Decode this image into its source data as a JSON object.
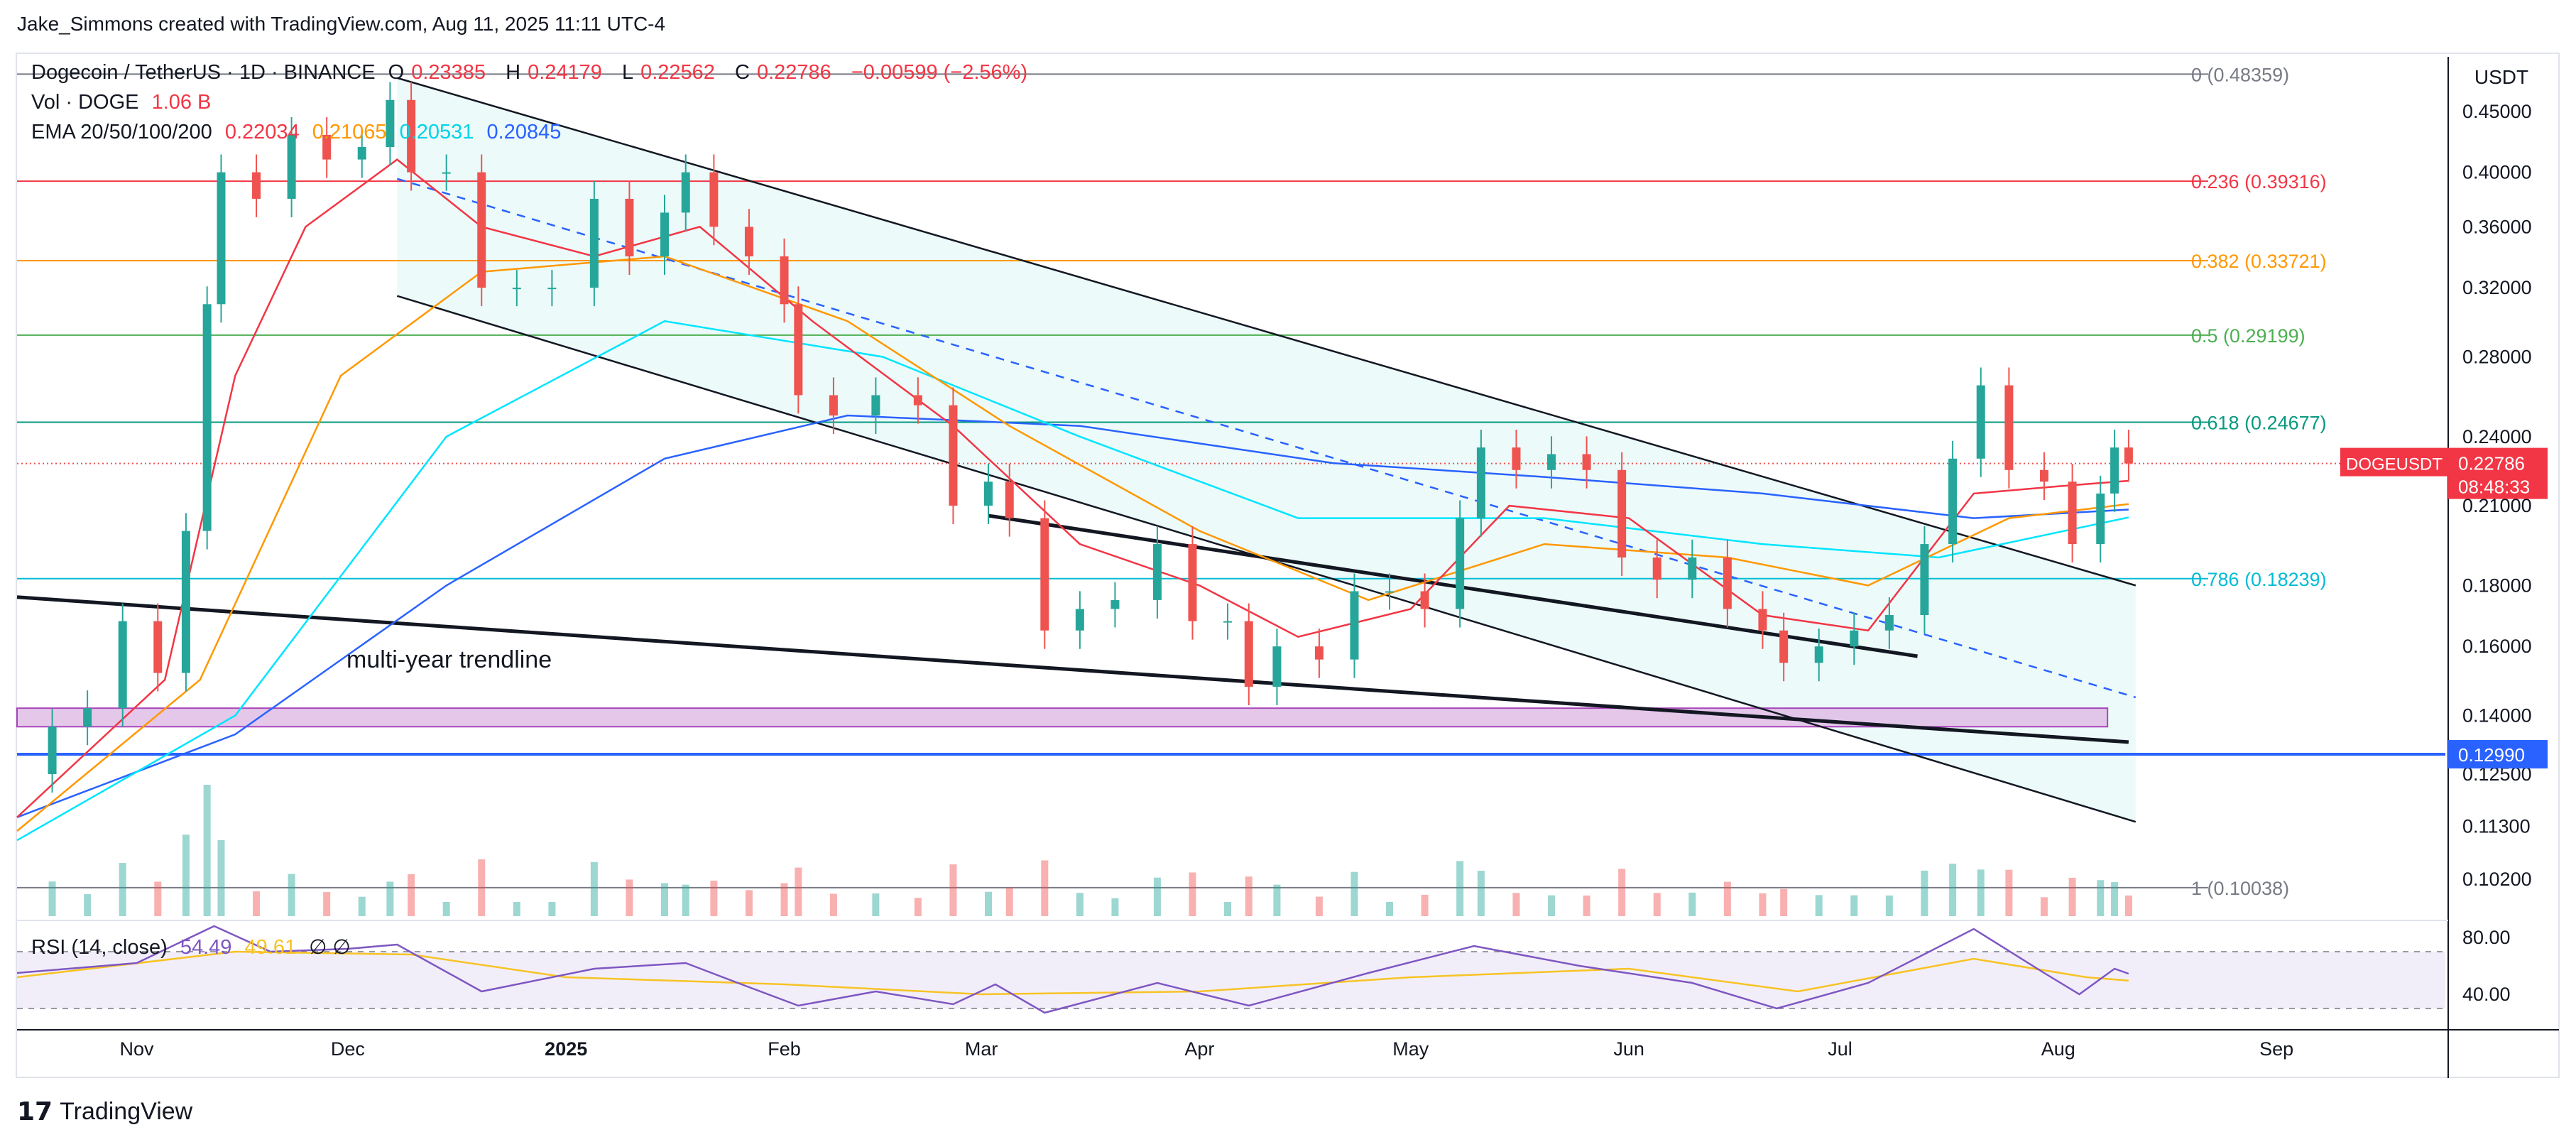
{
  "caption": "Jake_Simmons created with TradingView.com, Aug 11, 2025 11:11 UTC-4",
  "legend": {
    "symbol": "Dogecoin / TetherUS · 1D · BINANCE",
    "o_label": "O",
    "o_value": "0.23385",
    "h_label": "H",
    "h_value": "0.24179",
    "l_label": "L",
    "l_value": "0.22562",
    "c_label": "C",
    "c_value": "0.22786",
    "change": "−0.00599 (−2.56%)",
    "vol_label": "Vol · DOGE",
    "vol_value": "1.06 B",
    "ema_label": "EMA 20/50/100/200",
    "ema20": "0.22034",
    "ema50": "0.21065",
    "ema100": "0.20531",
    "ema200": "0.20845",
    "rsi_label": "RSI (14, close)",
    "rsi_value": "54.49",
    "rsi_ma": "49.61",
    "rsi_icons": "∅ ∅"
  },
  "currency": "USDT",
  "brand": "TradingView",
  "annotation": "multi-year trendline",
  "colors": {
    "up": "#26a69a",
    "down": "#ef5350",
    "ema20": "#f23645",
    "ema50": "#ff9800",
    "ema100": "#00e5ff",
    "ema200": "#2962ff",
    "support": "#2962ff",
    "zone": "#9c27b0",
    "channel": "#e0f7f7"
  },
  "chart_data": {
    "type": "candlestick",
    "title": "Dogecoin / TetherUS · 1D · BINANCE",
    "y_scale": "log",
    "ylim": [
      0.095,
      0.5
    ],
    "y_ticks": [
      "0.45000",
      "0.40000",
      "0.36000",
      "0.32000",
      "0.28000",
      "0.24000",
      "0.21000",
      "0.18000",
      "0.16000",
      "0.14000",
      "0.12500",
      "0.11300",
      "0.10200"
    ],
    "y_tick_values": [
      0.45,
      0.4,
      0.36,
      0.32,
      0.28,
      0.24,
      0.21,
      0.18,
      0.16,
      0.14,
      0.125,
      0.113,
      0.102
    ],
    "x_ticks": [
      "Nov",
      "Dec",
      "2025",
      "Feb",
      "Mar",
      "Apr",
      "May",
      "Jun",
      "Jul",
      "Aug",
      "Sep"
    ],
    "x_tick_dates": [
      "2024-11-01",
      "2024-12-01",
      "2025-01-01",
      "2025-02-01",
      "2025-03-01",
      "2025-04-01",
      "2025-05-01",
      "2025-06-01",
      "2025-07-01",
      "2025-08-01",
      "2025-09-01"
    ],
    "x_range": [
      "2024-10-15",
      "2025-09-25"
    ],
    "last_price": {
      "label": "DOGEUSDT",
      "value": "0.22786",
      "countdown": "08:48:33"
    },
    "support_line": {
      "label": "0.12990",
      "value": 0.1299
    },
    "fibonacci": [
      {
        "label": "0 (0.48359)",
        "value": 0.48359,
        "color": "#787b86"
      },
      {
        "label": "0.236 (0.39316)",
        "value": 0.39316,
        "color": "#f23645"
      },
      {
        "label": "0.382 (0.33721)",
        "value": 0.33721,
        "color": "#ff9800"
      },
      {
        "label": "0.5 (0.29199)",
        "value": 0.29199,
        "color": "#4caf50"
      },
      {
        "label": "0.618 (0.24677)",
        "value": 0.24677,
        "color": "#089981"
      },
      {
        "label": "0.786 (0.18239)",
        "value": 0.18239,
        "color": "#00bcd4"
      },
      {
        "label": "1 (0.10038)",
        "value": 0.10038,
        "color": "#787b86"
      }
    ],
    "close_series": [
      [
        "2024-10-15",
        0.125
      ],
      [
        "2024-10-20",
        0.137
      ],
      [
        "2024-10-25",
        0.142
      ],
      [
        "2024-10-30",
        0.168
      ],
      [
        "2024-11-04",
        0.152
      ],
      [
        "2024-11-08",
        0.2
      ],
      [
        "2024-11-11",
        0.31
      ],
      [
        "2024-11-13",
        0.4
      ],
      [
        "2024-11-18",
        0.38
      ],
      [
        "2024-11-23",
        0.43
      ],
      [
        "2024-11-28",
        0.41
      ],
      [
        "2024-12-03",
        0.42
      ],
      [
        "2024-12-07",
        0.46
      ],
      [
        "2024-12-10",
        0.4
      ],
      [
        "2024-12-15",
        0.4
      ],
      [
        "2024-12-20",
        0.32
      ],
      [
        "2024-12-25",
        0.32
      ],
      [
        "2024-12-30",
        0.32
      ],
      [
        "2025-01-05",
        0.38
      ],
      [
        "2025-01-10",
        0.34
      ],
      [
        "2025-01-15",
        0.37
      ],
      [
        "2025-01-18",
        0.4
      ],
      [
        "2025-01-22",
        0.36
      ],
      [
        "2025-01-27",
        0.34
      ],
      [
        "2025-02-01",
        0.31
      ],
      [
        "2025-02-03",
        0.26
      ],
      [
        "2025-02-08",
        0.25
      ],
      [
        "2025-02-14",
        0.26
      ],
      [
        "2025-02-20",
        0.255
      ],
      [
        "2025-02-25",
        0.21
      ],
      [
        "2025-03-02",
        0.22
      ],
      [
        "2025-03-05",
        0.205
      ],
      [
        "2025-03-10",
        0.165
      ],
      [
        "2025-03-15",
        0.172
      ],
      [
        "2025-03-20",
        0.175
      ],
      [
        "2025-03-26",
        0.195
      ],
      [
        "2025-03-31",
        0.168
      ],
      [
        "2025-04-05",
        0.168
      ],
      [
        "2025-04-08",
        0.148
      ],
      [
        "2025-04-12",
        0.16
      ],
      [
        "2025-04-18",
        0.156
      ],
      [
        "2025-04-23",
        0.178
      ],
      [
        "2025-04-28",
        0.178
      ],
      [
        "2025-05-03",
        0.172
      ],
      [
        "2025-05-08",
        0.205
      ],
      [
        "2025-05-11",
        0.235
      ],
      [
        "2025-05-16",
        0.225
      ],
      [
        "2025-05-21",
        0.232
      ],
      [
        "2025-05-26",
        0.225
      ],
      [
        "2025-05-31",
        0.19
      ],
      [
        "2025-06-05",
        0.182
      ],
      [
        "2025-06-10",
        0.19
      ],
      [
        "2025-06-15",
        0.172
      ],
      [
        "2025-06-20",
        0.165
      ],
      [
        "2025-06-23",
        0.155
      ],
      [
        "2025-06-28",
        0.16
      ],
      [
        "2025-07-03",
        0.165
      ],
      [
        "2025-07-08",
        0.17
      ],
      [
        "2025-07-13",
        0.195
      ],
      [
        "2025-07-17",
        0.23
      ],
      [
        "2025-07-21",
        0.265
      ],
      [
        "2025-07-25",
        0.225
      ],
      [
        "2025-07-30",
        0.22
      ],
      [
        "2025-08-03",
        0.195
      ],
      [
        "2025-08-07",
        0.215
      ],
      [
        "2025-08-09",
        0.235
      ],
      [
        "2025-08-11",
        0.22786
      ]
    ],
    "ema20_series": [
      [
        "2024-10-15",
        0.115
      ],
      [
        "2024-11-05",
        0.15
      ],
      [
        "2024-11-15",
        0.27
      ],
      [
        "2024-11-25",
        0.36
      ],
      [
        "2024-12-08",
        0.41
      ],
      [
        "2024-12-20",
        0.36
      ],
      [
        "2025-01-05",
        0.34
      ],
      [
        "2025-01-20",
        0.36
      ],
      [
        "2025-02-05",
        0.3
      ],
      [
        "2025-02-25",
        0.245
      ],
      [
        "2025-03-15",
        0.195
      ],
      [
        "2025-04-01",
        0.18
      ],
      [
        "2025-04-15",
        0.163
      ],
      [
        "2025-05-01",
        0.172
      ],
      [
        "2025-05-15",
        0.21
      ],
      [
        "2025-06-01",
        0.205
      ],
      [
        "2025-06-20",
        0.17
      ],
      [
        "2025-07-05",
        0.165
      ],
      [
        "2025-07-20",
        0.215
      ],
      [
        "2025-08-01",
        0.218
      ],
      [
        "2025-08-11",
        0.22034
      ]
    ],
    "ema50_series": [
      [
        "2024-10-15",
        0.112
      ],
      [
        "2024-11-10",
        0.15
      ],
      [
        "2024-11-30",
        0.27
      ],
      [
        "2024-12-20",
        0.33
      ],
      [
        "2025-01-15",
        0.34
      ],
      [
        "2025-02-10",
        0.3
      ],
      [
        "2025-03-05",
        0.245
      ],
      [
        "2025-04-01",
        0.2
      ],
      [
        "2025-04-25",
        0.175
      ],
      [
        "2025-05-20",
        0.195
      ],
      [
        "2025-06-15",
        0.19
      ],
      [
        "2025-07-05",
        0.18
      ],
      [
        "2025-07-25",
        0.205
      ],
      [
        "2025-08-11",
        0.21065
      ]
    ],
    "ema100_series": [
      [
        "2024-10-15",
        0.11
      ],
      [
        "2024-11-15",
        0.14
      ],
      [
        "2024-12-15",
        0.24
      ],
      [
        "2025-01-15",
        0.3
      ],
      [
        "2025-02-15",
        0.28
      ],
      [
        "2025-03-15",
        0.24
      ],
      [
        "2025-04-15",
        0.205
      ],
      [
        "2025-05-20",
        0.205
      ],
      [
        "2025-06-20",
        0.195
      ],
      [
        "2025-07-15",
        0.19
      ],
      [
        "2025-08-11",
        0.20531
      ]
    ],
    "ema200_series": [
      [
        "2024-10-15",
        0.115
      ],
      [
        "2024-11-15",
        0.135
      ],
      [
        "2024-12-15",
        0.18
      ],
      [
        "2025-01-15",
        0.23
      ],
      [
        "2025-02-10",
        0.25
      ],
      [
        "2025-03-15",
        0.245
      ],
      [
        "2025-04-20",
        0.228
      ],
      [
        "2025-05-20",
        0.222
      ],
      [
        "2025-06-20",
        0.215
      ],
      [
        "2025-07-20",
        0.205
      ],
      [
        "2025-08-11",
        0.20845
      ]
    ],
    "trendlines": [
      {
        "name": "multi-year trendline",
        "from": [
          "2024-10-15",
          0.176
        ],
        "to": [
          "2025-08-11",
          0.133
        ],
        "color": "#131722"
      },
      {
        "from": [
          "2024-12-08",
          0.48
        ],
        "to": [
          "2025-08-12",
          0.18
        ],
        "color": "#131722"
      },
      {
        "from": [
          "2024-12-08",
          0.315
        ],
        "to": [
          "2025-08-12",
          0.114
        ],
        "color": "#131722"
      },
      {
        "from": [
          "2025-03-02",
          0.206
        ],
        "to": [
          "2025-07-12",
          0.157
        ],
        "color": "#131722"
      },
      {
        "from": [
          "2024-12-08",
          0.395
        ],
        "to": [
          "2025-08-12",
          0.145
        ],
        "color": "#2962ff",
        "dashed": true
      }
    ],
    "zone": {
      "from": "2024-10-15",
      "to": "2025-08-08",
      "low": 0.137,
      "high": 0.142
    },
    "rsi": {
      "ylim": [
        20,
        90
      ],
      "ticks": [
        "80.00",
        "40.00"
      ],
      "tick_values": [
        80,
        40
      ],
      "band": [
        30,
        70
      ],
      "series": [
        [
          "2024-10-15",
          55
        ],
        [
          "2024-11-01",
          62
        ],
        [
          "2024-11-12",
          88
        ],
        [
          "2024-11-20",
          70
        ],
        [
          "2024-12-01",
          72
        ],
        [
          "2024-12-08",
          75
        ],
        [
          "2024-12-20",
          42
        ],
        [
          "2025-01-05",
          58
        ],
        [
          "2025-01-18",
          62
        ],
        [
          "2025-01-27",
          45
        ],
        [
          "2025-02-03",
          32
        ],
        [
          "2025-02-14",
          42
        ],
        [
          "2025-02-25",
          33
        ],
        [
          "2025-03-03",
          47
        ],
        [
          "2025-03-10",
          27
        ],
        [
          "2025-03-26",
          48
        ],
        [
          "2025-04-08",
          32
        ],
        [
          "2025-04-25",
          55
        ],
        [
          "2025-05-10",
          74
        ],
        [
          "2025-05-25",
          60
        ],
        [
          "2025-06-10",
          48
        ],
        [
          "2025-06-22",
          30
        ],
        [
          "2025-07-05",
          48
        ],
        [
          "2025-07-20",
          86
        ],
        [
          "2025-07-30",
          55
        ],
        [
          "2025-08-04",
          40
        ],
        [
          "2025-08-09",
          58
        ],
        [
          "2025-08-11",
          54.49
        ]
      ],
      "ma_series": [
        [
          "2024-10-15",
          52
        ],
        [
          "2024-11-15",
          70
        ],
        [
          "2024-12-10",
          68
        ],
        [
          "2025-01-01",
          52
        ],
        [
          "2025-02-01",
          47
        ],
        [
          "2025-03-01",
          40
        ],
        [
          "2025-04-01",
          42
        ],
        [
          "2025-05-01",
          52
        ],
        [
          "2025-06-01",
          58
        ],
        [
          "2025-06-25",
          42
        ],
        [
          "2025-07-20",
          65
        ],
        [
          "2025-08-05",
          52
        ],
        [
          "2025-08-11",
          49.61
        ]
      ]
    }
  }
}
